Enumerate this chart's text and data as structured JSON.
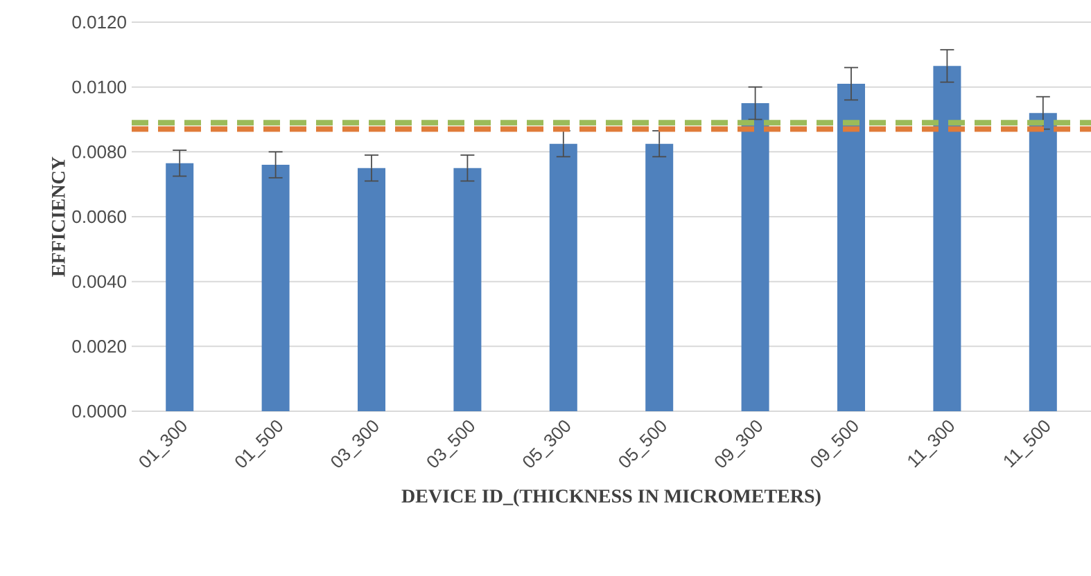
{
  "chart_data": {
    "type": "bar",
    "xlabel": "DEVICE ID_(THICKNESS IN MICROMETERS)",
    "ylabel": "EFFICIENCY",
    "categories": [
      "01_300",
      "01_500",
      "03_300",
      "03_500",
      "05_300",
      "05_500",
      "09_300",
      "09_500",
      "11_300",
      "11_500"
    ],
    "values": [
      0.00765,
      0.0076,
      0.0075,
      0.0075,
      0.00825,
      0.00825,
      0.0095,
      0.0101,
      0.01065,
      0.0092
    ],
    "errors": [
      0.0004,
      0.0004,
      0.0004,
      0.0004,
      0.0004,
      0.0004,
      0.0005,
      0.0005,
      0.0005,
      0.0005
    ],
    "color": "#4f81bd",
    "ylim": [
      0,
      0.012
    ],
    "yticks": [
      {
        "value": 0,
        "label": "0.0000"
      },
      {
        "value": 0.002,
        "label": "0.0020"
      },
      {
        "value": 0.004,
        "label": "0.0040"
      },
      {
        "value": 0.006,
        "label": "0.0060"
      },
      {
        "value": 0.008,
        "label": "0.0080"
      },
      {
        "value": 0.01,
        "label": "0.0100"
      },
      {
        "value": 0.012,
        "label": "0.0120"
      }
    ],
    "grid": "y",
    "ref_lines": [
      {
        "axis": "y",
        "value": 0.0089,
        "color": "#9bbb59",
        "line_style": "dashed"
      },
      {
        "axis": "y",
        "value": 0.0087,
        "color": "#e07b39",
        "line_style": "dashed"
      }
    ]
  }
}
